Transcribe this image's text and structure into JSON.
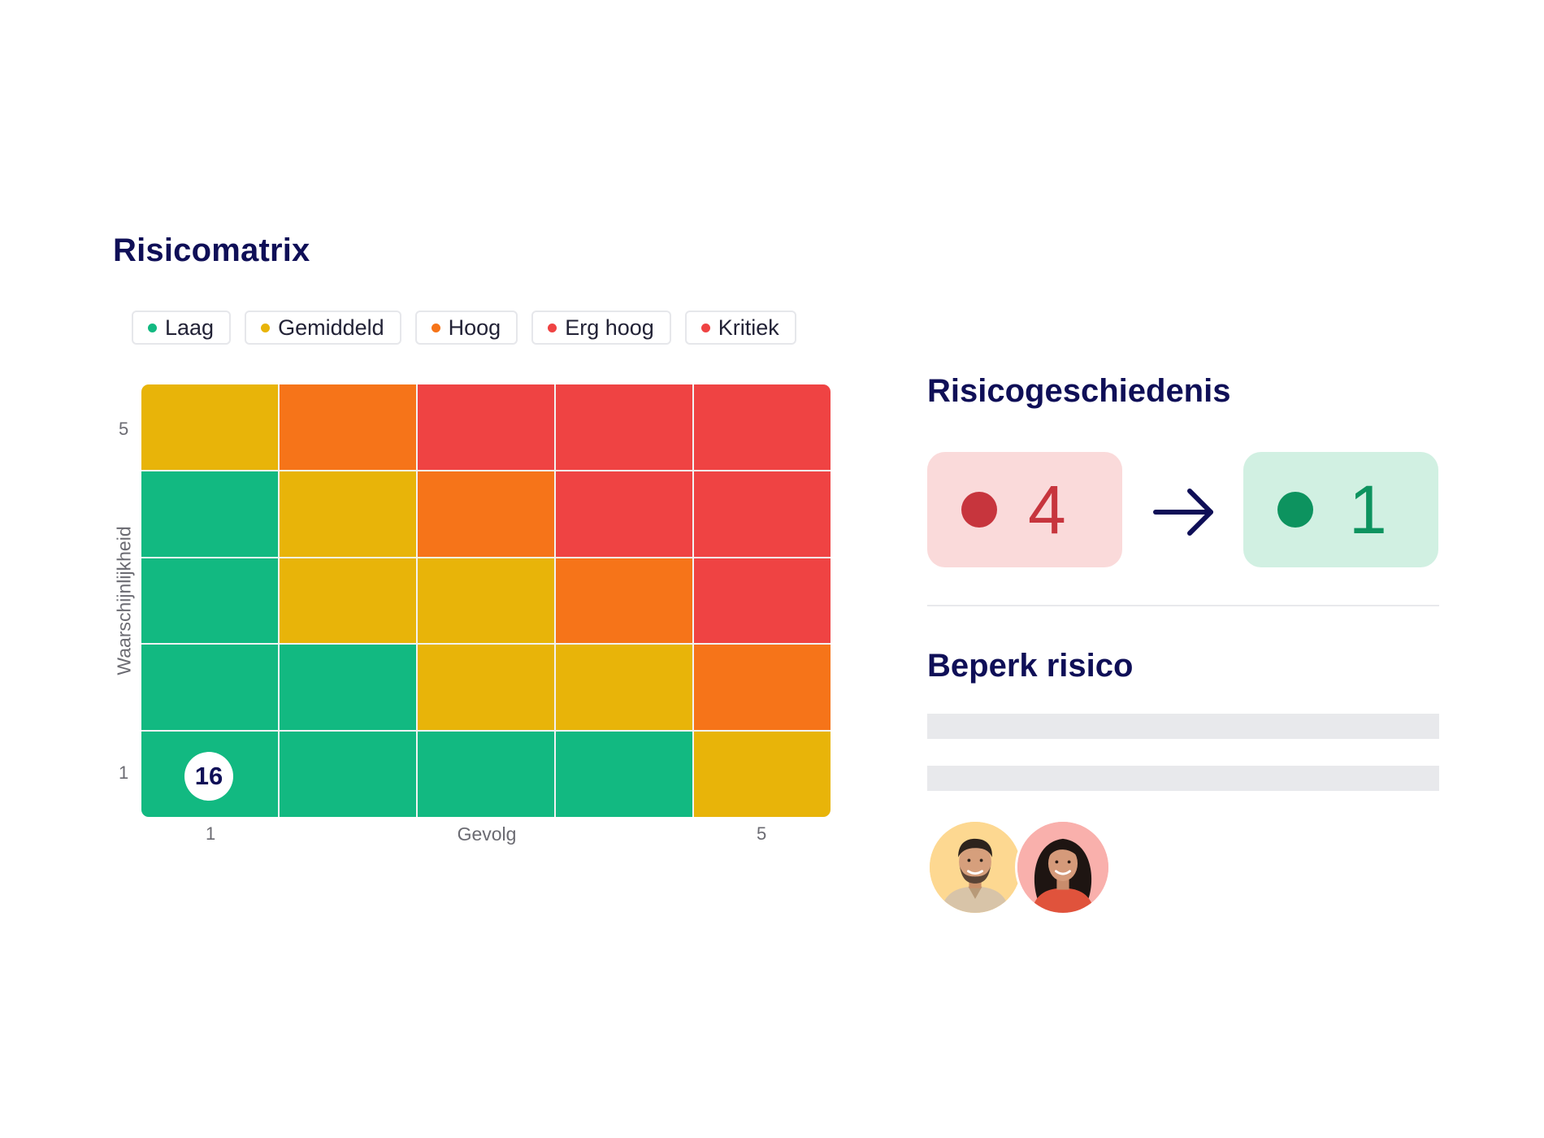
{
  "matrix": {
    "title": "Risicomatrix",
    "legend": [
      {
        "label": "Laag",
        "color": "#12b981"
      },
      {
        "label": "Gemiddeld",
        "color": "#e8b409"
      },
      {
        "label": "Hoog",
        "color": "#f67419"
      },
      {
        "label": "Erg hoog",
        "color": "#ef4343"
      },
      {
        "label": "Kritiek",
        "color": "#ef4343"
      }
    ],
    "level_colors": {
      "Laag": "#12b981",
      "Gemiddeld": "#e8b409",
      "Hoog": "#f67419",
      "Erg hoog": "#ef4343",
      "Kritiek": "#ef4343"
    },
    "grid_rows_top_to_bottom": [
      [
        "Gemiddeld",
        "Hoog",
        "Erg hoog",
        "Erg hoog",
        "Kritiek"
      ],
      [
        "Laag",
        "Gemiddeld",
        "Hoog",
        "Erg hoog",
        "Kritiek"
      ],
      [
        "Laag",
        "Gemiddeld",
        "Gemiddeld",
        "Hoog",
        "Kritiek"
      ],
      [
        "Laag",
        "Laag",
        "Gemiddeld",
        "Gemiddeld",
        "Hoog"
      ],
      [
        "Laag",
        "Laag",
        "Laag",
        "Laag",
        "Gemiddeld"
      ]
    ],
    "badge": {
      "value": "16",
      "likelihood": 1,
      "consequence": 1
    },
    "y_axis": {
      "label": "Waarschijnlijkheid",
      "tick_top": "5",
      "tick_bottom": "1"
    },
    "x_axis": {
      "label": "Gevolg",
      "tick_left": "1",
      "tick_right": "5"
    }
  },
  "history": {
    "title": "Risicogeschiedenis",
    "from": {
      "value": "4",
      "color": "#c7353d",
      "background": "#fadada"
    },
    "to": {
      "value": "1",
      "color": "#0d935f",
      "background": "#d1f0e2"
    },
    "arrow_icon": "arrow-right-icon"
  },
  "mitigate": {
    "title": "Beperk risico",
    "avatars": [
      {
        "icon": "avatar-man-icon",
        "background": "#fdd891"
      },
      {
        "icon": "avatar-woman-icon",
        "background": "#f9b0ac"
      }
    ]
  }
}
